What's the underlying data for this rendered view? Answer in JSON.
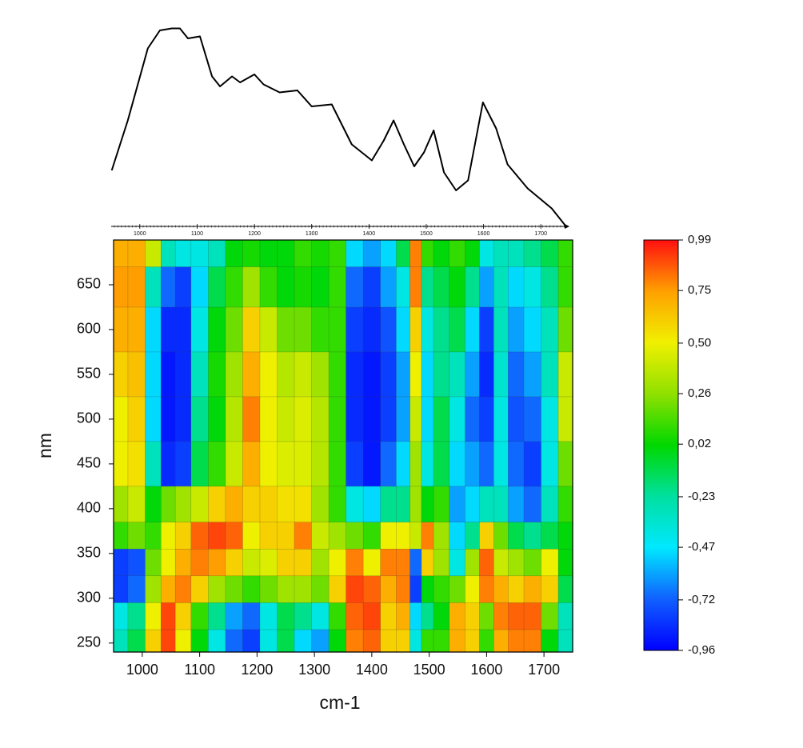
{
  "chart_data": [
    {
      "type": "line",
      "x": [
        951,
        979,
        1014,
        1035,
        1056,
        1070,
        1084,
        1105,
        1126,
        1140,
        1161,
        1175,
        1200,
        1216,
        1244,
        1275,
        1300,
        1335,
        1370,
        1405,
        1426,
        1443,
        1461,
        1479,
        1496,
        1513,
        1531,
        1552,
        1573,
        1599,
        1622,
        1642,
        1677,
        1719,
        1744
      ],
      "values": [
        0.28,
        0.53,
        0.89,
        0.98,
        0.99,
        0.99,
        0.94,
        0.95,
        0.75,
        0.7,
        0.75,
        0.72,
        0.76,
        0.71,
        0.67,
        0.68,
        0.6,
        0.61,
        0.41,
        0.33,
        0.43,
        0.53,
        0.41,
        0.3,
        0.37,
        0.48,
        0.27,
        0.18,
        0.23,
        0.62,
        0.49,
        0.31,
        0.19,
        0.09,
        0.0
      ],
      "color": "#000000",
      "xlim": [
        950,
        1750
      ],
      "ylim": [
        0,
        1
      ],
      "xticks": [
        1000,
        1100,
        1200,
        1300,
        1400,
        1500,
        1600,
        1700
      ]
    },
    {
      "type": "heatmap",
      "xlabel": "cm-1",
      "ylabel": "nm",
      "x": [
        960,
        990,
        1020,
        1045,
        1070,
        1100,
        1130,
        1160,
        1190,
        1220,
        1250,
        1280,
        1310,
        1340,
        1370,
        1400,
        1430,
        1455,
        1478,
        1495,
        1520,
        1550,
        1575,
        1600,
        1625,
        1650,
        1680,
        1710,
        1740
      ],
      "y": [
        690,
        650,
        600,
        550,
        500,
        450,
        400,
        370,
        340,
        310,
        280,
        250
      ],
      "z": [
        [
          0.7,
          0.75,
          0.7,
          0.6,
          0.5,
          0.5,
          0.3,
          0.1,
          -0.8,
          -0.8,
          -0.4,
          -0.3
        ],
        [
          0.7,
          0.75,
          0.7,
          0.65,
          0.6,
          0.55,
          0.4,
          0.2,
          -0.75,
          -0.7,
          -0.2,
          -0.1
        ],
        [
          0.4,
          -0.3,
          -0.5,
          -0.5,
          -0.5,
          -0.3,
          0,
          0.1,
          0.2,
          0.3,
          0.5,
          0.6
        ],
        [
          -0.3,
          -0.7,
          -0.85,
          -0.9,
          -0.9,
          -0.85,
          0.2,
          0.5,
          0.5,
          0.7,
          0.9,
          0.9
        ],
        [
          -0.4,
          -0.8,
          -0.85,
          -0.85,
          -0.85,
          -0.8,
          0.3,
          0.6,
          0.7,
          0.8,
          0.6,
          0.5
        ],
        [
          -0.4,
          -0.5,
          -0.4,
          -0.3,
          -0.2,
          -0.1,
          0.4,
          0.85,
          0.8,
          0.6,
          0.1,
          0
        ],
        [
          -0.3,
          -0.1,
          0,
          0.05,
          0,
          0.1,
          0.6,
          0.9,
          0.75,
          0.3,
          -0.2,
          -0.4
        ],
        [
          0,
          0.1,
          0.2,
          0.3,
          0.35,
          0.4,
          0.7,
          0.85,
          0.6,
          0.2,
          -0.6,
          -0.7
        ],
        [
          0.05,
          0.3,
          0.6,
          0.7,
          0.8,
          0.7,
          0.6,
          0.5,
          0.4,
          0.1,
          -0.7,
          -0.8
        ],
        [
          0,
          0.1,
          0.4,
          0.5,
          0.5,
          0.5,
          0.6,
          0.6,
          0.45,
          0.2,
          -0.4,
          -0.4
        ],
        [
          0,
          0,
          0.2,
          0.35,
          0.4,
          0.45,
          0.55,
          0.6,
          0.6,
          0.3,
          -0.1,
          -0.1
        ],
        [
          0.1,
          0.05,
          0.2,
          0.4,
          0.45,
          0.45,
          0.55,
          0.8,
          0.6,
          0.3,
          -0.2,
          -0.5
        ],
        [
          0.05,
          0,
          0.1,
          0.3,
          0.35,
          0.35,
          0.3,
          0.4,
          0.3,
          0.2,
          -0.4,
          -0.6
        ],
        [
          0.1,
          0.1,
          0.1,
          0.1,
          0.1,
          0.1,
          0.1,
          0.3,
          0.5,
          0.6,
          0.1,
          0
        ],
        [
          -0.5,
          -0.7,
          -0.8,
          -0.85,
          -0.85,
          -0.8,
          -0.4,
          0.2,
          0.8,
          0.9,
          0.85,
          0.8
        ],
        [
          -0.6,
          -0.8,
          -0.85,
          -0.9,
          -0.9,
          -0.9,
          -0.5,
          0.1,
          0.5,
          0.85,
          0.9,
          0.85
        ],
        [
          -0.5,
          -0.6,
          -0.75,
          -0.8,
          -0.8,
          -0.7,
          -0.2,
          0.5,
          0.8,
          0.7,
          0.6,
          0.6
        ],
        [
          -0.1,
          -0.4,
          -0.5,
          -0.6,
          -0.6,
          -0.5,
          -0.2,
          0.5,
          0.8,
          0.8,
          0.7,
          0.6
        ],
        [
          0.8,
          0.8,
          0.6,
          0.5,
          0.4,
          0.3,
          0.3,
          0.4,
          -0.7,
          -0.8,
          -0.5,
          -0.4
        ],
        [
          0.1,
          -0.2,
          -0.4,
          -0.5,
          -0.5,
          -0.4,
          0,
          0.8,
          0.6,
          0,
          -0.2,
          0.1
        ],
        [
          0,
          -0.1,
          -0.2,
          -0.2,
          -0.1,
          -0.1,
          0.1,
          0.3,
          0.3,
          0.1,
          0,
          0.1
        ],
        [
          0.1,
          0,
          -0.1,
          -0.3,
          -0.4,
          -0.5,
          -0.6,
          -0.5,
          -0.4,
          0.2,
          0.7,
          0.7
        ],
        [
          0,
          -0.2,
          -0.5,
          -0.6,
          -0.7,
          -0.6,
          -0.5,
          -0.2,
          0.3,
          0.5,
          0.6,
          0.6
        ],
        [
          -0.4,
          -0.6,
          -0.8,
          -0.85,
          -0.8,
          -0.7,
          -0.3,
          0.6,
          0.85,
          0.8,
          0.2,
          0.1
        ],
        [
          -0.3,
          -0.3,
          -0.3,
          -0.35,
          -0.4,
          -0.4,
          -0.3,
          0.2,
          0.4,
          0.7,
          0.8,
          0.7
        ],
        [
          -0.3,
          -0.5,
          -0.6,
          -0.7,
          -0.75,
          -0.7,
          -0.6,
          -0.1,
          0.3,
          0.6,
          0.85,
          0.8
        ],
        [
          -0.2,
          -0.4,
          -0.5,
          -0.6,
          -0.7,
          -0.8,
          -0.7,
          -0.2,
          0.2,
          0.7,
          0.85,
          0.8
        ],
        [
          -0.1,
          -0.2,
          -0.3,
          -0.3,
          -0.4,
          -0.4,
          -0.3,
          -0.1,
          0.5,
          0.6,
          0.2,
          0
        ],
        [
          0.1,
          0.1,
          0.2,
          0.4,
          0.4,
          0.2,
          0.1,
          0,
          0,
          -0.1,
          -0.3,
          -0.3
        ]
      ],
      "xlim": [
        950,
        1750
      ],
      "ylim": [
        240,
        700
      ],
      "xticks": [
        1000,
        1100,
        1200,
        1300,
        1400,
        1500,
        1600,
        1700
      ],
      "yticks": [
        250,
        300,
        350,
        400,
        450,
        500,
        550,
        600,
        650
      ],
      "zlim": [
        -0.96,
        0.99
      ],
      "zticks": [
        {
          "value": -0.96,
          "label": "-0,96"
        },
        {
          "value": -0.72,
          "label": "-0,72"
        },
        {
          "value": -0.47,
          "label": "-0,47"
        },
        {
          "value": -0.23,
          "label": "-0,23"
        },
        {
          "value": 0.02,
          "label": "0,02"
        },
        {
          "value": 0.26,
          "label": "0,26"
        },
        {
          "value": 0.5,
          "label": "0,50"
        },
        {
          "value": 0.75,
          "label": "0,75"
        },
        {
          "value": 0.99,
          "label": "0,99"
        }
      ],
      "colormap": [
        "#0000ff",
        "#1060ff",
        "#00e8ff",
        "#00e0a0",
        "#00d800",
        "#90e000",
        "#f0f000",
        "#ffa000",
        "#ff1010"
      ]
    }
  ]
}
